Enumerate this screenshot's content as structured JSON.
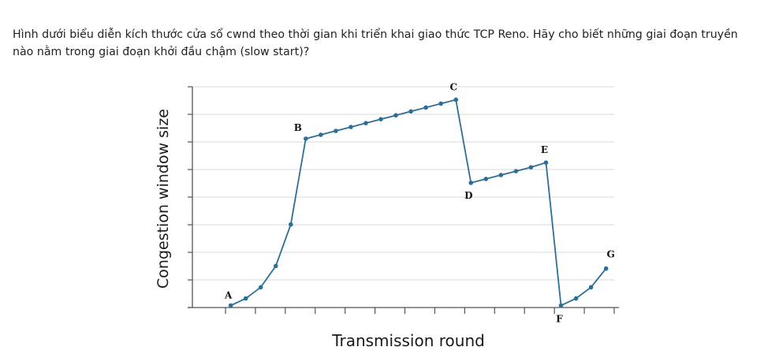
{
  "question": {
    "text": "Hình dưới biểu diễn kích thước cửa sổ cwnd theo thời gian khi triển khai giao thức TCP Reno. Hãy cho biết những giai đoạn truyền nào nằm trong giai đoạn khởi đầu chậm (slow start)?"
  },
  "colors": {
    "line": "#2c6e97",
    "axis": "#555555",
    "grid": "#d9d9d9"
  },
  "chart_data": {
    "type": "line",
    "title": "",
    "xlabel": "Transmission round",
    "ylabel": "Congestion window size",
    "grid": true,
    "x_ticks": 13,
    "y_ticks": 8,
    "x_range": [
      0,
      13
    ],
    "y_range": [
      0,
      8.5
    ],
    "series": [
      {
        "values": [
          {
            "x": 0.7,
            "y": 0.08
          },
          {
            "x": 1.2,
            "y": 0.35
          },
          {
            "x": 1.7,
            "y": 0.78
          },
          {
            "x": 2.2,
            "y": 1.6
          },
          {
            "x": 2.7,
            "y": 3.2
          },
          {
            "x": 3.2,
            "y": 6.5
          },
          {
            "x": 3.7,
            "y": 6.65
          },
          {
            "x": 4.2,
            "y": 6.8
          },
          {
            "x": 4.7,
            "y": 6.95
          },
          {
            "x": 5.2,
            "y": 7.1
          },
          {
            "x": 5.7,
            "y": 7.25
          },
          {
            "x": 6.2,
            "y": 7.4
          },
          {
            "x": 6.7,
            "y": 7.55
          },
          {
            "x": 7.2,
            "y": 7.7
          },
          {
            "x": 7.7,
            "y": 7.85
          },
          {
            "x": 8.2,
            "y": 8.0
          },
          {
            "x": 8.7,
            "y": 4.8
          },
          {
            "x": 9.2,
            "y": 4.95
          },
          {
            "x": 9.7,
            "y": 5.1
          },
          {
            "x": 10.2,
            "y": 5.25
          },
          {
            "x": 10.7,
            "y": 5.4
          },
          {
            "x": 11.2,
            "y": 5.58
          },
          {
            "x": 11.7,
            "y": 0.08
          },
          {
            "x": 12.2,
            "y": 0.35
          },
          {
            "x": 12.7,
            "y": 0.78
          },
          {
            "x": 13.2,
            "y": 1.5
          }
        ]
      }
    ],
    "annotations": [
      {
        "label": "A",
        "x": 0.7,
        "y": 0.08
      },
      {
        "label": "B",
        "x": 3.2,
        "y": 6.5
      },
      {
        "label": "C",
        "x": 8.2,
        "y": 8.0
      },
      {
        "label": "D",
        "x": 8.7,
        "y": 4.8
      },
      {
        "label": "E",
        "x": 11.2,
        "y": 5.58
      },
      {
        "label": "F",
        "x": 11.7,
        "y": 0.08
      },
      {
        "label": "G",
        "x": 13.2,
        "y": 1.5
      }
    ]
  }
}
